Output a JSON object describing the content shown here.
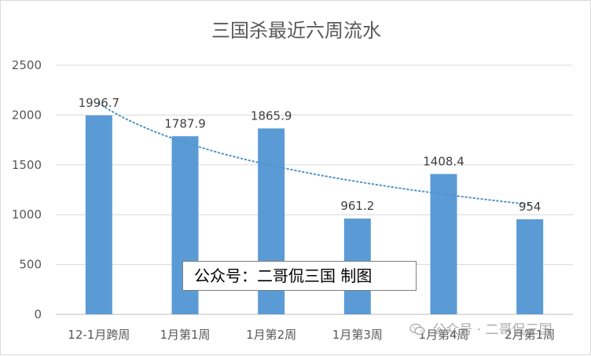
{
  "chart_data": {
    "type": "bar",
    "title": "三国杀最近六周流水",
    "categories": [
      "12-1月跨周",
      "1月第1周",
      "1月第2周",
      "1月第3周",
      "1月第4周",
      "2月第1周"
    ],
    "values": [
      1996.7,
      1787.9,
      1865.9,
      961.2,
      1408.4,
      954
    ],
    "data_labels": [
      "1996.7",
      "1787.9",
      "1865.9",
      "961.2",
      "1408.4",
      "954"
    ],
    "ylim": [
      0,
      2500
    ],
    "yticks": [
      0,
      500,
      1000,
      1500,
      2000,
      2500
    ],
    "grid": true,
    "legend": "none",
    "trendline": {
      "type": "logarithmic",
      "style": "dotted",
      "color": "#4f93c4"
    },
    "bar_color": "#5b9bd5"
  },
  "annotation_text": "公众号：二哥侃三国 制图",
  "watermark_text": "公众号 · 二哥侃三国",
  "watermark_icon": "wechat-icon"
}
